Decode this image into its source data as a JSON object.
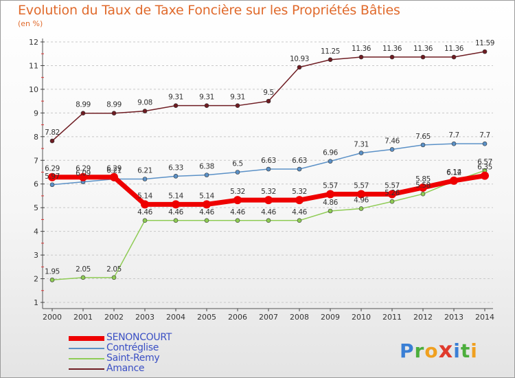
{
  "chart_data": {
    "type": "line",
    "title": "Evolution du Taux de Taxe Foncière sur les Propriétés Bâties",
    "ylabel": "(en %)",
    "xlabel": "",
    "x": [
      2000,
      2001,
      2002,
      2003,
      2004,
      2005,
      2006,
      2007,
      2008,
      2009,
      2010,
      2011,
      2012,
      2013,
      2014
    ],
    "ylim": [
      1,
      12
    ],
    "yticks": [
      1,
      2,
      3,
      4,
      5,
      6,
      7,
      8,
      9,
      10,
      11,
      12
    ],
    "series": [
      {
        "name": "SENONCOURT",
        "color": "#ee0000",
        "values": [
          6.29,
          6.29,
          6.29,
          5.14,
          5.14,
          5.14,
          5.32,
          5.32,
          5.32,
          5.57,
          5.57,
          5.57,
          5.85,
          6.14,
          6.35
        ]
      },
      {
        "name": "Contréglise",
        "color": "#5b91c7",
        "values": [
          5.97,
          6.09,
          6.21,
          6.21,
          6.33,
          6.38,
          6.5,
          6.63,
          6.63,
          6.96,
          7.31,
          7.46,
          7.65,
          7.7,
          7.7
        ]
      },
      {
        "name": "Saint-Remy",
        "color": "#8fcc55",
        "values": [
          1.95,
          2.05,
          2.05,
          4.46,
          4.46,
          4.46,
          4.46,
          4.46,
          4.46,
          4.86,
          4.96,
          5.26,
          5.58,
          6.12,
          6.57
        ]
      },
      {
        "name": "Amance",
        "color": "#6e1c22",
        "values": [
          7.82,
          8.99,
          8.99,
          9.08,
          9.31,
          9.31,
          9.31,
          9.5,
          10.93,
          11.25,
          11.36,
          11.36,
          11.36,
          11.36,
          11.59
        ]
      }
    ],
    "point_labels": [
      {
        "series": "SENONCOURT",
        "labels": [
          "6.29",
          "6.29",
          "6.29",
          "5.14",
          "5.14",
          "5.14",
          "5.32",
          "5.32",
          "5.32",
          "5.57",
          "5.57",
          "5.57",
          "5.85",
          "6.14",
          "6.35"
        ]
      },
      {
        "series": "Contréglise",
        "labels": [
          "5.97",
          "6.09",
          "6.21",
          "6.21",
          "6.33",
          "6.38",
          "6.5",
          "6.63",
          "6.63",
          "6.96",
          "7.31",
          "7.46",
          "7.65",
          "7.7",
          "7.7"
        ]
      },
      {
        "series": "Saint-Remy",
        "labels": [
          "1.95",
          "2.05",
          "2.05",
          "4.46",
          "4.46",
          "4.46",
          "4.46",
          "4.46",
          "4.46",
          "4.86",
          "4.96",
          "5.26",
          "5.58",
          "6.12",
          "6.57"
        ]
      },
      {
        "series": "Amance",
        "labels": [
          "7.82",
          "8.99",
          "8.99",
          "9.08",
          "9.31",
          "9.31",
          "9.31",
          "9.5",
          "10.93",
          "11.25",
          "11.36",
          "11.36",
          "11.36",
          "11.36",
          "11.59"
        ]
      }
    ],
    "legend_position": "bottom-left"
  },
  "logo": {
    "text": "Proxiti"
  }
}
